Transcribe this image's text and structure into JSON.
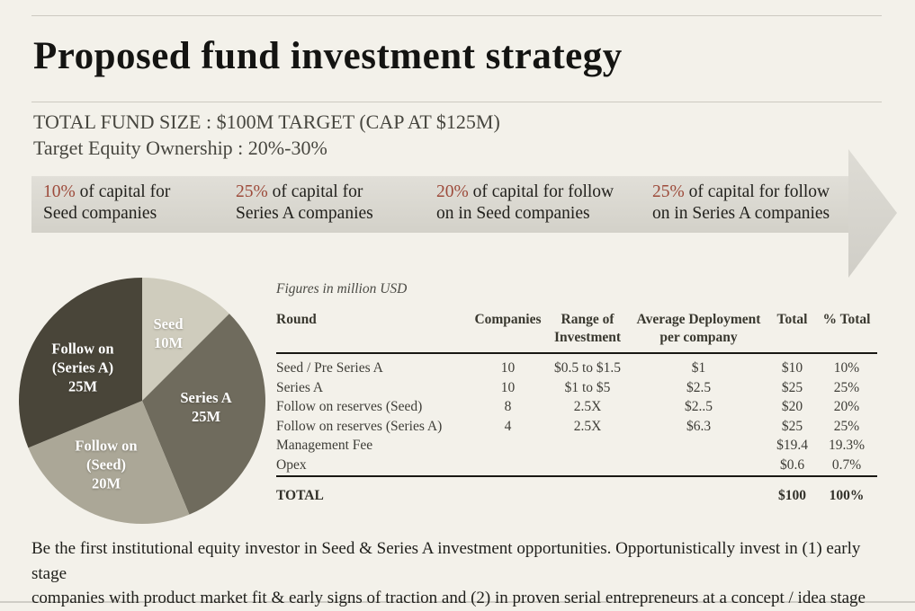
{
  "slide": {
    "title": "Proposed fund investment strategy",
    "subtitle_line1": "TOTAL FUND SIZE : $100M TARGET (CAP AT $125M)",
    "subtitle_line2": "Target Equity Ownership : 20%-30%",
    "footer_text": "Be the first institutional equity investor in Seed & Series A investment opportunities. Opportunistically invest in (1) early stage\ncompanies with product market fit & early signs of traction and (2) in proven serial entrepreneurs at a concept / idea stage"
  },
  "arrow_banner": {
    "band_color_top": "#e1dfd8",
    "band_color_bottom": "#d3d1c9",
    "percent_color": "#9d4b3b",
    "segments": [
      {
        "percent": "10%",
        "line1_rest": " of capital for",
        "line2": "Seed companies"
      },
      {
        "percent": "25%",
        "line1_rest": " of capital for",
        "line2": "Series A companies"
      },
      {
        "percent": "20%",
        "line1_rest": " of capital for follow",
        "line2": "on in Seed companies"
      },
      {
        "percent": "25%",
        "line1_rest": " of capital for follow",
        "line2": "on in Series A companies"
      }
    ]
  },
  "chart_data": {
    "type": "pie",
    "unit": "million USD",
    "start": "top",
    "direction": "clockwise",
    "total": 80,
    "slices": [
      {
        "id": "seed",
        "label": "Seed",
        "value": 10,
        "display": "Seed\n10M",
        "color": "#cfccbd"
      },
      {
        "id": "series-a",
        "label": "Series A",
        "value": 25,
        "display": "Series A\n25M",
        "color": "#6f6b5d"
      },
      {
        "id": "follow-on-seed",
        "label": "Follow on (Seed)",
        "value": 20,
        "display": "Follow on\n(Seed)\n20M",
        "color": "#aba797"
      },
      {
        "id": "follow-on-series-a",
        "label": "Follow on (Series A)",
        "value": 25,
        "display": "Follow on\n(Series A)\n25M",
        "color": "#494539"
      }
    ]
  },
  "table": {
    "caption": "Figures in million USD",
    "headers": [
      "Round",
      "Companies",
      "Range of\nInvestment",
      "Average Deployment\nper company",
      "Total",
      "% Total"
    ],
    "rows": [
      [
        "Seed / Pre Series A",
        "10",
        "$0.5 to $1.5",
        "$1",
        "$10",
        "10%"
      ],
      [
        "Series A",
        "10",
        "$1 to $5",
        "$2.5",
        "$25",
        "25%"
      ],
      [
        "Follow on reserves (Seed)",
        "8",
        "2.5X",
        "$2..5",
        "$20",
        "20%"
      ],
      [
        "Follow on reserves (Series A)",
        "4",
        "2.5X",
        "$6.3",
        "$25",
        "25%"
      ],
      [
        "Management Fee",
        "",
        "",
        "",
        "$19.4",
        "19.3%"
      ],
      [
        "Opex",
        "",
        "",
        "",
        "$0.6",
        "0.7%"
      ]
    ],
    "total_row": [
      "TOTAL",
      "",
      "",
      "",
      "$100",
      "100%"
    ]
  }
}
